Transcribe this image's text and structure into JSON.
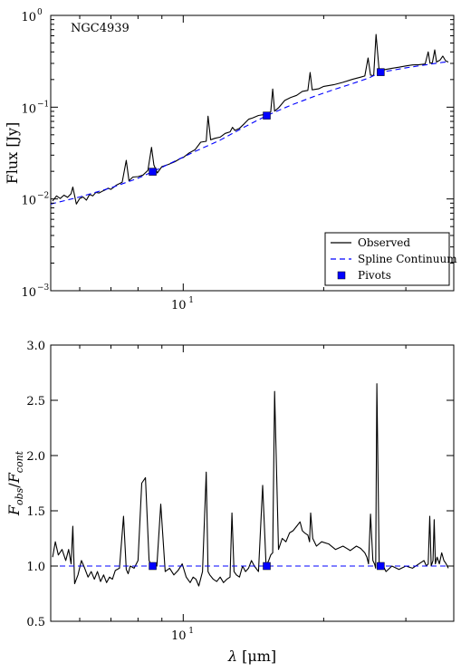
{
  "chart_data": [
    {
      "type": "line",
      "annotation": "NGC4939",
      "ylabel": "Flux [Jy]",
      "xlabel": "",
      "xscale": "log",
      "yscale": "log",
      "xlim": [
        5.2,
        38
      ],
      "ylim": [
        0.001,
        1.0
      ],
      "x_ticks": [
        {
          "value": 10,
          "label": "10",
          "exp": "1"
        }
      ],
      "y_ticks": [
        {
          "value": 0.001,
          "label": "10",
          "exp": "−3"
        },
        {
          "value": 0.01,
          "label": "10",
          "exp": "−2"
        },
        {
          "value": 0.1,
          "label": "10",
          "exp": "−1"
        },
        {
          "value": 1.0,
          "label": "10",
          "exp": "0"
        }
      ],
      "legend_position": "lower-right",
      "legend": [
        {
          "label": "Observed",
          "style": "solid",
          "color": "#000000"
        },
        {
          "label": "Spline Continuum",
          "style": "dashed",
          "color": "#0000ff"
        },
        {
          "label": "Pivots",
          "style": "square",
          "color": "#0000ff"
        }
      ],
      "series": [
        {
          "name": "Observed",
          "style": "solid",
          "color": "#000000",
          "x": [
            5.25,
            5.35,
            5.45,
            5.55,
            5.65,
            5.75,
            5.8,
            5.9,
            6.0,
            6.1,
            6.2,
            6.3,
            6.4,
            6.5,
            6.6,
            6.7,
            6.8,
            6.9,
            7.0,
            7.2,
            7.4,
            7.55,
            7.65,
            7.8,
            8.0,
            8.2,
            8.4,
            8.55,
            8.65,
            8.8,
            9.0,
            9.3,
            9.6,
            9.85,
            10.0,
            10.3,
            10.6,
            10.9,
            11.2,
            11.3,
            11.45,
            11.7,
            12.0,
            12.3,
            12.6,
            12.75,
            12.9,
            13.2,
            13.5,
            13.8,
            14.1,
            14.5,
            15.0,
            15.4,
            15.55,
            15.7,
            16.0,
            16.5,
            17.0,
            17.5,
            18.0,
            18.5,
            18.7,
            18.9,
            19.5,
            20.0,
            21.0,
            22.0,
            23.0,
            24.0,
            24.5,
            24.9,
            25.2,
            25.6,
            25.9,
            26.3,
            27.0,
            28.0,
            29.0,
            30.0,
            31.0,
            32.0,
            33.0,
            33.5,
            33.8,
            34.2,
            34.6,
            34.9,
            35.5,
            36.0,
            36.5,
            37.0
          ],
          "y": [
            0.0095,
            0.0108,
            0.0101,
            0.011,
            0.0104,
            0.0114,
            0.0135,
            0.0088,
            0.0101,
            0.0105,
            0.0097,
            0.0112,
            0.0108,
            0.0118,
            0.0116,
            0.0121,
            0.0125,
            0.0131,
            0.0127,
            0.0142,
            0.0152,
            0.0263,
            0.0158,
            0.0173,
            0.0175,
            0.0182,
            0.0205,
            0.0365,
            0.0235,
            0.0192,
            0.0225,
            0.0238,
            0.0255,
            0.0275,
            0.0283,
            0.0318,
            0.0343,
            0.0415,
            0.0425,
            0.0798,
            0.0442,
            0.0458,
            0.0472,
            0.0518,
            0.0538,
            0.0603,
            0.0558,
            0.0588,
            0.0658,
            0.0738,
            0.0765,
            0.0812,
            0.0835,
            0.0888,
            0.1575,
            0.0905,
            0.0982,
            0.1185,
            0.1275,
            0.1345,
            0.1485,
            0.1525,
            0.2385,
            0.1545,
            0.1585,
            0.1685,
            0.1755,
            0.1865,
            0.2005,
            0.2125,
            0.2185,
            0.3435,
            0.2235,
            0.2205,
            0.6205,
            0.2455,
            0.2565,
            0.2655,
            0.2725,
            0.2815,
            0.2885,
            0.2905,
            0.2955,
            0.4005,
            0.3005,
            0.3055,
            0.4205,
            0.3105,
            0.3255,
            0.3605,
            0.3205,
            0.3105
          ]
        },
        {
          "name": "Spline Continuum",
          "style": "dashed",
          "color": "#0000ff",
          "x": [
            5.2,
            6.0,
            7.0,
            8.0,
            8.6,
            9.5,
            10.5,
            12.0,
            13.5,
            15.1,
            17.0,
            19.0,
            21.0,
            23.0,
            25.0,
            26.5,
            28.0,
            30.0,
            32.0,
            34.0,
            36.0,
            37.0
          ],
          "y": [
            0.0088,
            0.0105,
            0.0132,
            0.0168,
            0.0198,
            0.0252,
            0.0322,
            0.0438,
            0.0605,
            0.081,
            0.105,
            0.13,
            0.155,
            0.18,
            0.208,
            0.241,
            0.252,
            0.268,
            0.282,
            0.295,
            0.308,
            0.312
          ]
        },
        {
          "name": "Pivots",
          "style": "square",
          "color": "#0000ff",
          "x": [
            8.6,
            15.1,
            26.5
          ],
          "y": [
            0.0198,
            0.081,
            0.241
          ]
        }
      ]
    },
    {
      "type": "line",
      "annotation": "",
      "xlabel": "λ [μm]",
      "ylabel": "F_obs / F_cont",
      "xscale": "log",
      "yscale": "linear",
      "xlim": [
        5.2,
        38
      ],
      "ylim": [
        0.5,
        3.0
      ],
      "x_ticks": [
        {
          "value": 10,
          "label": "10",
          "exp": "1"
        }
      ],
      "y_ticks": [
        {
          "value": 0.5,
          "label": "0.5"
        },
        {
          "value": 1.0,
          "label": "1.0"
        },
        {
          "value": 1.5,
          "label": "1.5"
        },
        {
          "value": 2.0,
          "label": "2.0"
        },
        {
          "value": 2.5,
          "label": "2.5"
        },
        {
          "value": 3.0,
          "label": "3.0"
        }
      ],
      "series": [
        {
          "name": "Observed",
          "style": "solid",
          "color": "#000000",
          "x": [
            5.25,
            5.32,
            5.4,
            5.5,
            5.6,
            5.68,
            5.75,
            5.8,
            5.85,
            5.95,
            6.05,
            6.15,
            6.25,
            6.35,
            6.45,
            6.55,
            6.65,
            6.75,
            6.85,
            6.95,
            7.05,
            7.15,
            7.3,
            7.45,
            7.55,
            7.62,
            7.7,
            7.85,
            8.0,
            8.15,
            8.3,
            8.45,
            8.55,
            8.65,
            8.78,
            8.95,
            9.15,
            9.35,
            9.55,
            9.75,
            9.95,
            10.15,
            10.35,
            10.5,
            10.65,
            10.8,
            11.0,
            11.2,
            11.3,
            11.4,
            11.6,
            11.8,
            12.0,
            12.2,
            12.4,
            12.6,
            12.72,
            12.85,
            13.0,
            13.2,
            13.4,
            13.6,
            13.8,
            14.0,
            14.2,
            14.5,
            14.8,
            15.05,
            15.25,
            15.4,
            15.55,
            15.7,
            16.0,
            16.3,
            16.6,
            16.9,
            17.2,
            17.5,
            17.8,
            18.0,
            18.2,
            18.5,
            18.65,
            18.75,
            18.95,
            19.3,
            19.8,
            20.5,
            21.2,
            22.0,
            22.8,
            23.5,
            24.0,
            24.5,
            24.75,
            24.95,
            25.2,
            25.5,
            25.7,
            25.85,
            26.0,
            26.3,
            26.7,
            27.2,
            28.0,
            29.0,
            30.0,
            31.0,
            32.0,
            32.8,
            33.2,
            33.5,
            33.75,
            34.0,
            34.3,
            34.5,
            34.7,
            35.0,
            35.4,
            35.8,
            36.2,
            36.6,
            37.0
          ],
          "y": [
            1.08,
            1.22,
            1.1,
            1.15,
            1.05,
            1.15,
            1.02,
            1.36,
            0.84,
            0.92,
            1.05,
            0.98,
            0.9,
            0.95,
            0.88,
            0.95,
            0.86,
            0.92,
            0.85,
            0.9,
            0.88,
            0.96,
            0.98,
            1.45,
            0.97,
            0.93,
            1.0,
            0.98,
            1.05,
            1.75,
            1.8,
            1.05,
            1.0,
            1.02,
            1.0,
            1.56,
            0.95,
            0.98,
            0.92,
            0.96,
            1.02,
            0.9,
            0.85,
            0.9,
            0.88,
            0.82,
            0.95,
            1.85,
            0.95,
            0.92,
            0.88,
            0.86,
            0.9,
            0.85,
            0.88,
            0.9,
            1.48,
            0.95,
            0.92,
            0.9,
            1.0,
            0.95,
            0.98,
            1.05,
            1.0,
            0.95,
            1.73,
            1.0,
            1.05,
            1.1,
            1.12,
            2.58,
            1.15,
            1.25,
            1.22,
            1.3,
            1.32,
            1.36,
            1.4,
            1.32,
            1.3,
            1.28,
            1.22,
            1.48,
            1.25,
            1.18,
            1.22,
            1.2,
            1.15,
            1.18,
            1.14,
            1.18,
            1.16,
            1.12,
            1.08,
            1.02,
            1.47,
            1.05,
            1.02,
            0.98,
            2.65,
            1.0,
            1.02,
            0.95,
            1.0,
            0.97,
            1.0,
            0.98,
            1.02,
            1.05,
            1.0,
            1.02,
            1.45,
            1.0,
            1.05,
            1.42,
            1.02,
            1.08,
            1.02,
            1.12,
            1.05,
            1.02,
            0.98
          ]
        },
        {
          "name": "Spline Continuum",
          "style": "dashed",
          "color": "#0000ff",
          "x": [
            5.2,
            38
          ],
          "y": [
            1.0,
            1.0
          ]
        },
        {
          "name": "Pivots",
          "style": "square",
          "color": "#0000ff",
          "x": [
            8.6,
            15.1,
            26.5
          ],
          "y": [
            1.0,
            1.0,
            1.0
          ]
        }
      ]
    }
  ]
}
